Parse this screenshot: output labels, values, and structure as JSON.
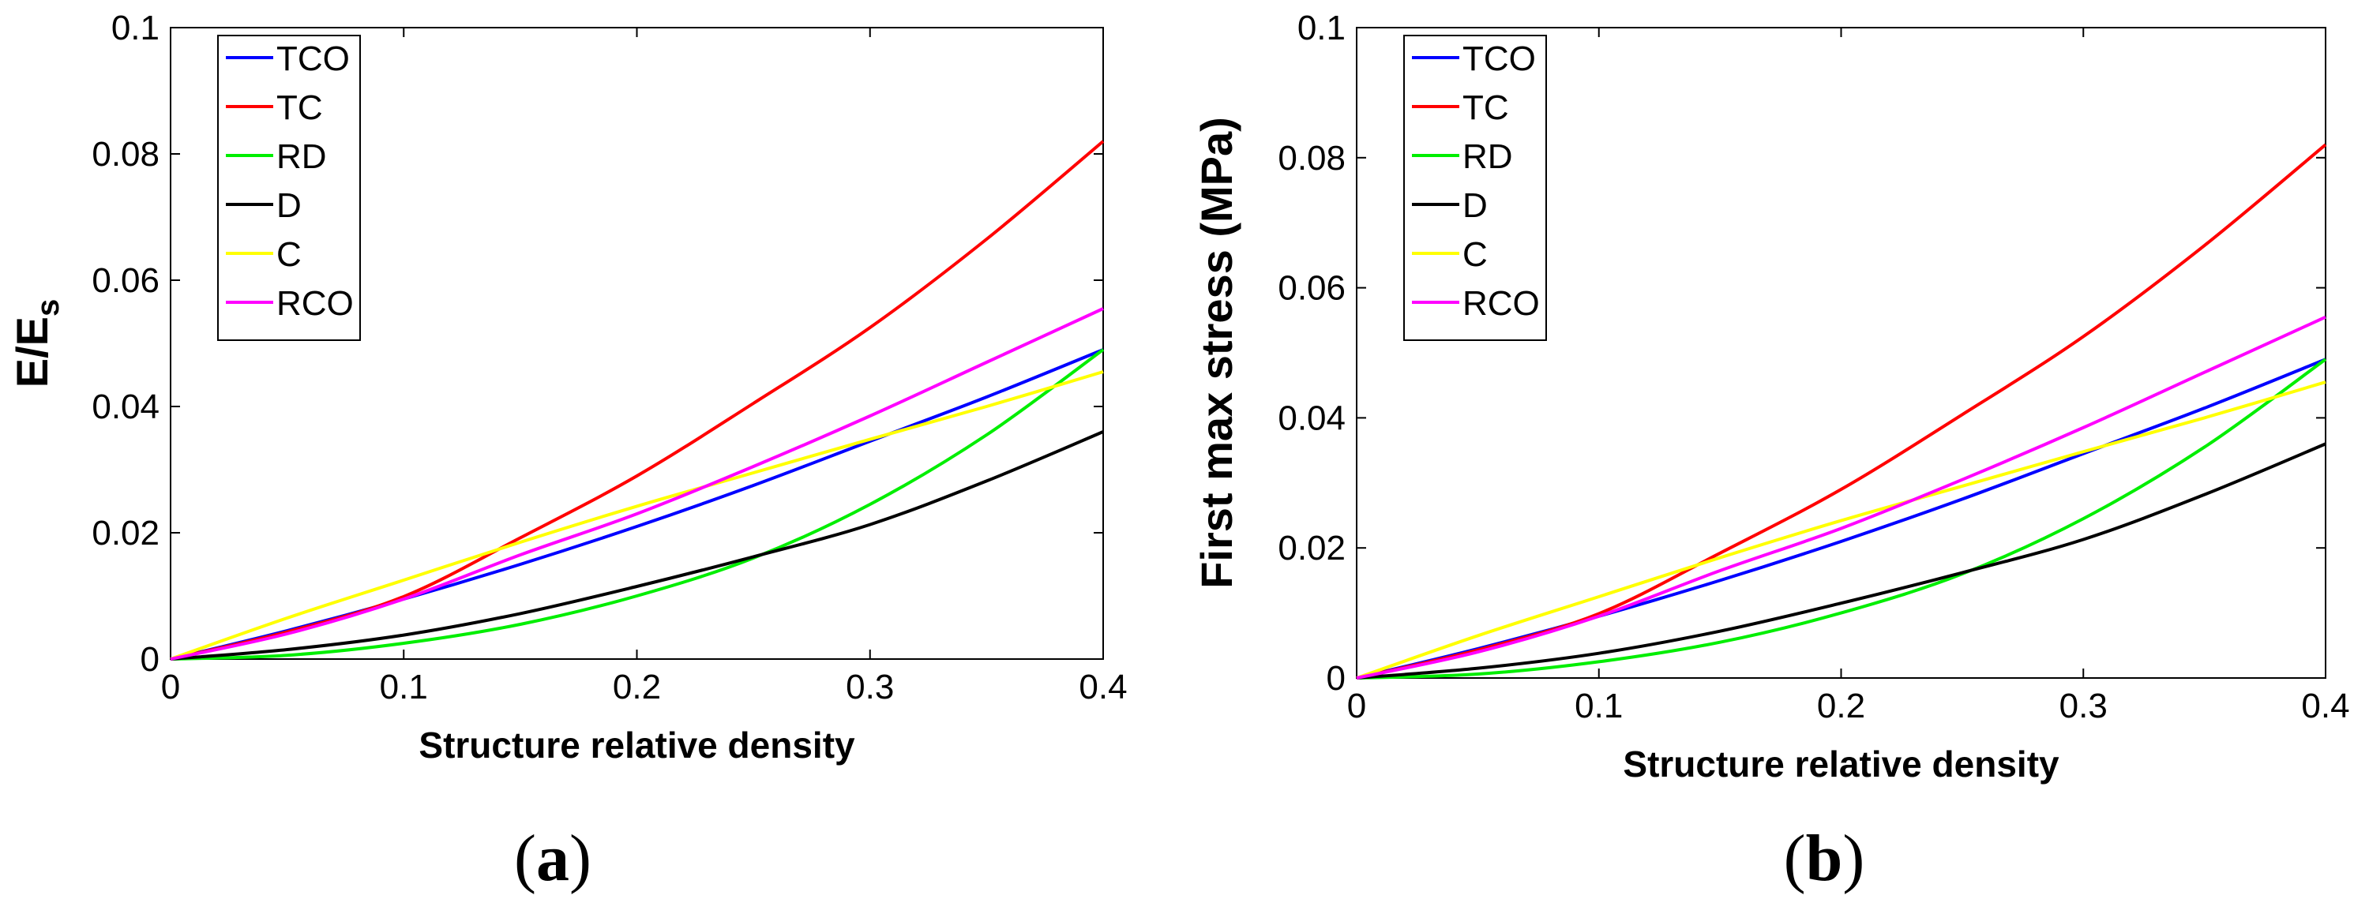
{
  "chart_data": [
    {
      "type": "line",
      "panel_label": "a",
      "xlabel": "Structure relative density",
      "ylabel": "E/E",
      "ylabel_subscript": "s",
      "xlim": [
        0,
        0.4
      ],
      "ylim": [
        0,
        0.1
      ],
      "xticks": [
        "0",
        "0.1",
        "0.2",
        "0.3",
        "0.4"
      ],
      "yticks": [
        "0",
        "0.02",
        "0.04",
        "0.06",
        "0.08",
        "0.1"
      ],
      "legend_position": "top-left",
      "x": [
        0,
        0.05,
        0.1,
        0.15,
        0.2,
        0.25,
        0.3,
        0.35,
        0.4
      ],
      "series": [
        {
          "name": "TCO",
          "color": "#0000ff",
          "values": [
            0,
            0.0045,
            0.0095,
            0.015,
            0.021,
            0.0275,
            0.0345,
            0.0415,
            0.049
          ]
        },
        {
          "name": "TC",
          "color": "#ff0000",
          "values": [
            0,
            0.0043,
            0.0099,
            0.0192,
            0.029,
            0.0405,
            0.0525,
            0.0665,
            0.082
          ]
        },
        {
          "name": "RD",
          "color": "#00ee00",
          "values": [
            0,
            0.0006,
            0.0025,
            0.0055,
            0.01,
            0.016,
            0.0245,
            0.0355,
            0.049
          ]
        },
        {
          "name": "D",
          "color": "#000000",
          "values": [
            0,
            0.0015,
            0.0038,
            0.0072,
            0.0115,
            0.0162,
            0.0213,
            0.0282,
            0.036
          ]
        },
        {
          "name": "C",
          "color": "#ffff00",
          "values": [
            0,
            0.0065,
            0.0125,
            0.0185,
            0.0242,
            0.0295,
            0.0348,
            0.04,
            0.0455
          ]
        },
        {
          "name": "RCO",
          "color": "#ff00ff",
          "values": [
            0,
            0.004,
            0.0095,
            0.0165,
            0.023,
            0.0305,
            0.0385,
            0.047,
            0.0555
          ]
        }
      ]
    },
    {
      "type": "line",
      "panel_label": "b",
      "xlabel": "Structure relative density",
      "ylabel": "First max stress (MPa)",
      "ylabel_subscript": "",
      "xlim": [
        0,
        0.4
      ],
      "ylim": [
        0,
        0.1
      ],
      "xticks": [
        "0",
        "0.1",
        "0.2",
        "0.3",
        "0.4"
      ],
      "yticks": [
        "0",
        "0.02",
        "0.04",
        "0.06",
        "0.08",
        "0.1"
      ],
      "legend_position": "top-left",
      "x": [
        0,
        0.05,
        0.1,
        0.15,
        0.2,
        0.25,
        0.3,
        0.35,
        0.4
      ],
      "series": [
        {
          "name": "TCO",
          "color": "#0000ff",
          "values": [
            0,
            0.0045,
            0.0095,
            0.015,
            0.021,
            0.0275,
            0.0345,
            0.0415,
            0.049
          ]
        },
        {
          "name": "TC",
          "color": "#ff0000",
          "values": [
            0,
            0.0043,
            0.0099,
            0.0192,
            0.029,
            0.0405,
            0.0525,
            0.0665,
            0.082
          ]
        },
        {
          "name": "RD",
          "color": "#00ee00",
          "values": [
            0,
            0.0006,
            0.0025,
            0.0055,
            0.01,
            0.016,
            0.0245,
            0.0355,
            0.049
          ]
        },
        {
          "name": "D",
          "color": "#000000",
          "values": [
            0,
            0.0015,
            0.0038,
            0.0072,
            0.0115,
            0.0162,
            0.0213,
            0.0282,
            0.036
          ]
        },
        {
          "name": "C",
          "color": "#ffff00",
          "values": [
            0,
            0.0065,
            0.0125,
            0.0185,
            0.0242,
            0.0295,
            0.0348,
            0.04,
            0.0455
          ]
        },
        {
          "name": "RCO",
          "color": "#ff00ff",
          "values": [
            0,
            0.004,
            0.0095,
            0.0165,
            0.023,
            0.0305,
            0.0385,
            0.047,
            0.0555
          ]
        }
      ]
    }
  ]
}
